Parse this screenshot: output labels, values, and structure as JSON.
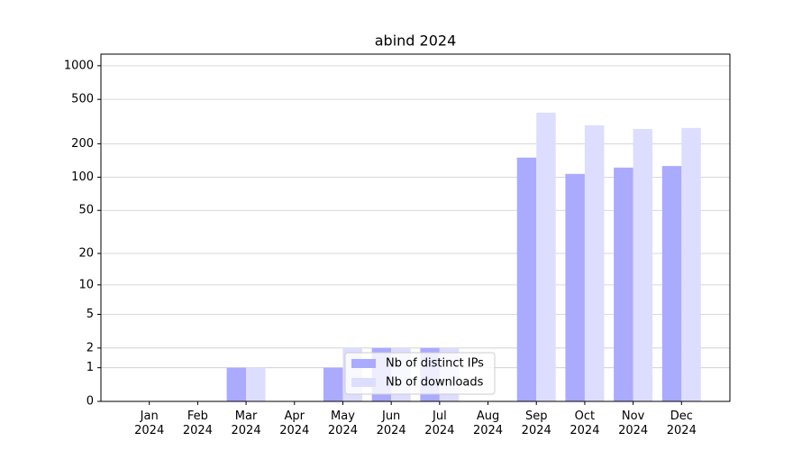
{
  "chart_data": {
    "type": "bar",
    "title": "abind 2024",
    "categories": [
      "Jan 2024",
      "Feb 2024",
      "Mar 2024",
      "Apr 2024",
      "May 2024",
      "Jun 2024",
      "Jul 2024",
      "Aug 2024",
      "Sep 2024",
      "Oct 2024",
      "Nov 2024",
      "Dec 2024"
    ],
    "series": [
      {
        "name": "Nb of distinct IPs",
        "color": "#aaaaff",
        "values": [
          0,
          0,
          1,
          0,
          1,
          2,
          2,
          0,
          150,
          107,
          122,
          126
        ]
      },
      {
        "name": "Nb of downloads",
        "color": "#ddddff",
        "values": [
          0,
          0,
          1,
          0,
          2,
          2,
          2,
          0,
          380,
          293,
          271,
          277
        ]
      }
    ],
    "yscale": "log1p",
    "ylim": [
      0,
      1270
    ],
    "yticks": [
      0,
      1,
      2,
      5,
      10,
      20,
      50,
      100,
      200,
      500,
      1000
    ],
    "grid": true,
    "legend": "lower center"
  }
}
